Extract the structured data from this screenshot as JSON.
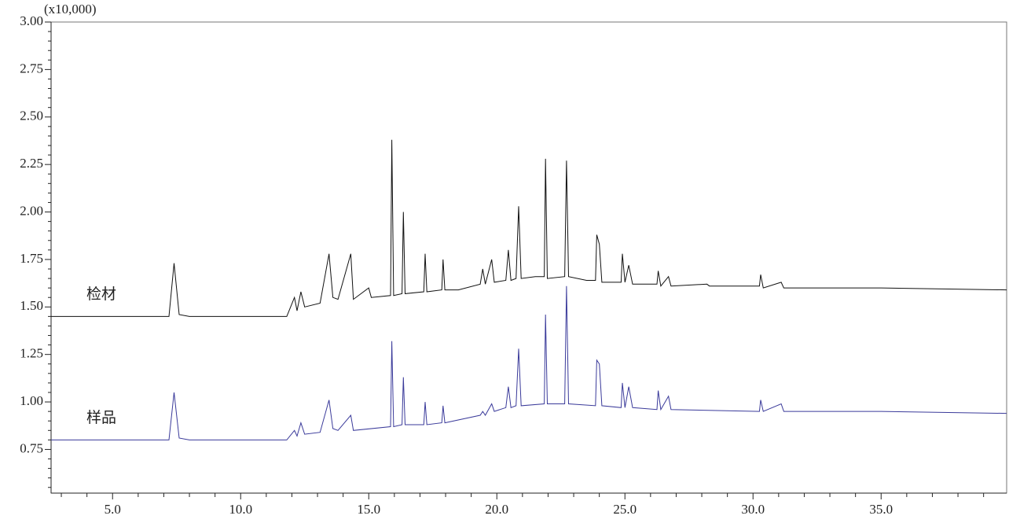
{
  "chart_data": {
    "type": "line",
    "annotation": "(x10,000)",
    "xlim": [
      2.6,
      39.9
    ],
    "ylim": [
      0.52,
      3.0
    ],
    "xticks": [
      {
        "value": 5,
        "label": "5.0"
      },
      {
        "value": 10,
        "label": "10.0"
      },
      {
        "value": 15,
        "label": "15.0"
      },
      {
        "value": 20,
        "label": "20.0"
      },
      {
        "value": 25,
        "label": "25.0"
      },
      {
        "value": 30,
        "label": "30.0"
      },
      {
        "value": 35,
        "label": "35.0"
      }
    ],
    "xminorticks": [
      3,
      4,
      6,
      7,
      8,
      9,
      11,
      12,
      13,
      14,
      16,
      17,
      18,
      19,
      21,
      22,
      23,
      24,
      26,
      27,
      28,
      29,
      31,
      32,
      33,
      34,
      36,
      37,
      38,
      39
    ],
    "yticks": [
      {
        "value": 0.75,
        "label": "0.75"
      },
      {
        "value": 1,
        "label": "1.00"
      },
      {
        "value": 1.25,
        "label": "1.25"
      },
      {
        "value": 1.5,
        "label": "1.50"
      },
      {
        "value": 1.75,
        "label": "1.75"
      },
      {
        "value": 2,
        "label": "2.00"
      },
      {
        "value": 2.25,
        "label": "2.25"
      },
      {
        "value": 2.5,
        "label": "2.50"
      },
      {
        "value": 2.75,
        "label": "2.75"
      },
      {
        "value": 3,
        "label": "3.00"
      }
    ],
    "yminorticks": [
      0.55,
      0.6,
      0.65,
      0.7,
      0.8,
      0.85,
      0.9,
      0.95,
      1.05,
      1.1,
      1.15,
      1.2,
      1.3,
      1.35,
      1.4,
      1.45,
      1.55,
      1.6,
      1.65,
      1.7,
      1.8,
      1.85,
      1.9,
      1.95,
      2.05,
      2.1,
      2.15,
      2.2,
      2.3,
      2.35,
      2.4,
      2.45,
      2.55,
      2.6,
      2.65,
      2.7,
      2.8,
      2.85,
      2.9,
      2.95
    ],
    "series": [
      {
        "name": "检材",
        "color": "#111111",
        "x": [
          2.6,
          7.2,
          7.4,
          7.6,
          8.0,
          11.8,
          12.1,
          12.2,
          12.35,
          12.5,
          13.1,
          13.45,
          13.6,
          13.8,
          14.3,
          14.4,
          15.0,
          15.1,
          15.85,
          15.9,
          15.97,
          16.3,
          16.35,
          16.42,
          17.15,
          17.2,
          17.27,
          17.85,
          17.9,
          17.97,
          18.5,
          19.35,
          19.45,
          19.55,
          19.8,
          19.9,
          20.35,
          20.45,
          20.55,
          20.75,
          20.85,
          20.95,
          21.5,
          21.85,
          21.9,
          21.97,
          22.65,
          22.72,
          22.8,
          23.5,
          23.85,
          23.9,
          24.0,
          24.1,
          24.85,
          24.9,
          25.0,
          25.15,
          25.3,
          26.25,
          26.3,
          26.4,
          26.7,
          26.8,
          28.2,
          28.3,
          30.25,
          30.3,
          30.4,
          31.1,
          31.2,
          35.0,
          39.9
        ],
        "values": [
          1.45,
          1.45,
          1.73,
          1.46,
          1.45,
          1.45,
          1.55,
          1.48,
          1.58,
          1.5,
          1.52,
          1.78,
          1.55,
          1.54,
          1.78,
          1.54,
          1.6,
          1.55,
          1.56,
          2.38,
          1.56,
          1.57,
          2.0,
          1.57,
          1.58,
          1.78,
          1.58,
          1.59,
          1.75,
          1.59,
          1.59,
          1.62,
          1.7,
          1.62,
          1.75,
          1.63,
          1.64,
          1.8,
          1.64,
          1.65,
          2.03,
          1.65,
          1.66,
          1.66,
          2.28,
          1.65,
          1.66,
          2.27,
          1.66,
          1.64,
          1.64,
          1.88,
          1.83,
          1.63,
          1.63,
          1.78,
          1.63,
          1.72,
          1.62,
          1.62,
          1.69,
          1.61,
          1.66,
          1.61,
          1.62,
          1.61,
          1.61,
          1.67,
          1.6,
          1.63,
          1.6,
          1.6,
          1.59
        ]
      },
      {
        "name": "样品",
        "color": "#3a3a9a",
        "x": [
          2.6,
          7.2,
          7.4,
          7.6,
          8.0,
          11.8,
          12.1,
          12.2,
          12.35,
          12.5,
          13.1,
          13.45,
          13.6,
          13.8,
          14.3,
          14.4,
          15.85,
          15.9,
          15.97,
          16.3,
          16.35,
          16.42,
          17.15,
          17.2,
          17.27,
          17.85,
          17.9,
          17.97,
          19.35,
          19.45,
          19.55,
          19.8,
          19.9,
          20.35,
          20.45,
          20.55,
          20.75,
          20.85,
          20.95,
          21.85,
          21.9,
          21.97,
          22.65,
          22.72,
          22.8,
          23.85,
          23.9,
          24.0,
          24.1,
          24.85,
          24.9,
          25.0,
          25.15,
          25.3,
          26.25,
          26.3,
          26.4,
          26.7,
          26.8,
          30.25,
          30.3,
          30.4,
          31.1,
          31.2,
          35.0,
          39.9
        ],
        "values": [
          0.8,
          0.8,
          1.05,
          0.81,
          0.8,
          0.8,
          0.85,
          0.82,
          0.89,
          0.83,
          0.84,
          1.01,
          0.86,
          0.85,
          0.93,
          0.85,
          0.87,
          1.32,
          0.87,
          0.88,
          1.13,
          0.88,
          0.88,
          1.0,
          0.88,
          0.89,
          0.98,
          0.89,
          0.93,
          0.95,
          0.93,
          0.99,
          0.95,
          0.97,
          1.08,
          0.97,
          0.98,
          1.28,
          0.98,
          0.99,
          1.46,
          0.99,
          0.99,
          1.61,
          0.99,
          0.98,
          1.22,
          1.2,
          0.98,
          0.97,
          1.1,
          0.97,
          1.08,
          0.97,
          0.96,
          1.06,
          0.96,
          1.03,
          0.96,
          0.95,
          1.01,
          0.95,
          0.99,
          0.95,
          0.95,
          0.94
        ]
      }
    ]
  }
}
